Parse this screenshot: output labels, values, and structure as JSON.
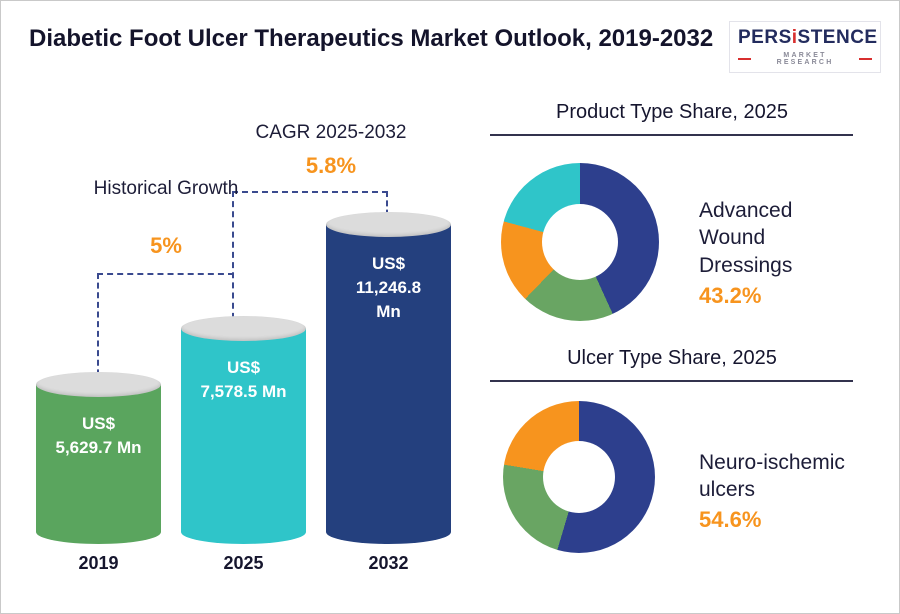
{
  "header": {
    "title": "Diabetic Foot Ulcer Therapeutics Market Outlook, 2019-2032",
    "logo": {
      "prefix": "PERS",
      "accent": "i",
      "suffix": "STENCE",
      "subtitle": "MARKET RESEARCH"
    }
  },
  "chart_data": [
    {
      "type": "bar",
      "title": "Diabetic Foot Ulcer Therapeutics Market Outlook, 2019-2032",
      "categories": [
        "2019",
        "2025",
        "2032"
      ],
      "values": [
        5629.7,
        7578.5,
        11246.8
      ],
      "unit": "US$ Mn",
      "value_labels": [
        "US$ 5,629.7 Mn",
        "US$ 7,578.5 Mn",
        "US$ 11,246.8 Mn"
      ],
      "bar_colors": [
        "#5aa55e",
        "#2fc5c9",
        "#24407e"
      ],
      "ylim": [
        0,
        11246.8
      ],
      "grid": "off",
      "annotations": [
        {
          "text": "Historical Growth",
          "value": "5%",
          "applies_to": "2019-2025"
        },
        {
          "text": "CAGR 2025-2032",
          "value": "5.8%",
          "applies_to": "2025-2032"
        }
      ]
    },
    {
      "type": "pie",
      "donut": true,
      "title": "Product Type Share, 2025",
      "legend": "none",
      "highlight": {
        "label": "Advanced Wound Dressings",
        "value": "43.2%"
      },
      "segments": [
        {
          "name": "Advanced Wound Dressings",
          "value": 43.2,
          "color": "#2d3f8d"
        },
        {
          "name": "unlabeled-green",
          "value": 19.0,
          "color": "#69a563"
        },
        {
          "name": "unlabeled-orange",
          "value": 17.0,
          "color": "#f7941e"
        },
        {
          "name": "unlabeled-teal",
          "value": 20.8,
          "color": "#2fc5c9"
        }
      ]
    },
    {
      "type": "pie",
      "donut": true,
      "title": "Ulcer Type Share, 2025",
      "legend": "none",
      "highlight": {
        "label": "Neuro-ischemic ulcers",
        "value": "54.6%"
      },
      "segments": [
        {
          "name": "Neuro-ischemic ulcers",
          "value": 54.6,
          "color": "#2d3f8d"
        },
        {
          "name": "unlabeled-green",
          "value": 23.0,
          "color": "#69a563"
        },
        {
          "name": "unlabeled-orange",
          "value": 22.4,
          "color": "#f7941e"
        }
      ]
    }
  ],
  "accent_colors": {
    "orange": "#f7941e",
    "navy": "#24407e",
    "teal": "#2fc5c9",
    "green": "#5aa55e"
  }
}
